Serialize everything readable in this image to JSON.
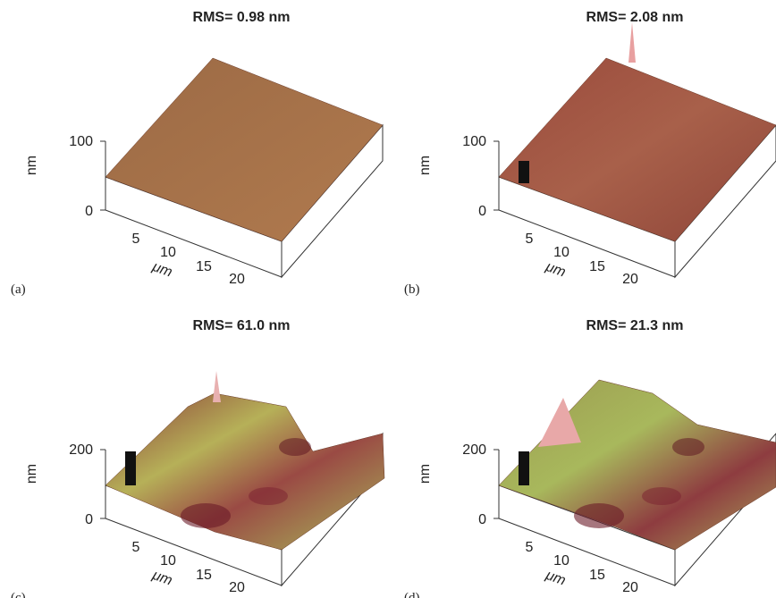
{
  "panels": [
    {
      "label": "(a)",
      "title": "RMS= 0.98 nm",
      "z_label": "nm",
      "z_ticks": [
        "100",
        "0"
      ],
      "x_ticks": [
        "5",
        "10",
        "15",
        "20"
      ],
      "x_label": "μm"
    },
    {
      "label": "(b)",
      "title": "RMS= 2.08 nm",
      "z_label": "nm",
      "z_ticks": [
        "100",
        "0"
      ],
      "x_ticks": [
        "5",
        "10",
        "15",
        "20"
      ],
      "x_label": "μm"
    },
    {
      "label": "(c)",
      "title": "RMS= 61.0 nm",
      "z_label": "nm",
      "z_ticks": [
        "200",
        "0"
      ],
      "x_ticks": [
        "5",
        "10",
        "15",
        "20"
      ],
      "x_label": "μm"
    },
    {
      "label": "(d)",
      "title": "RMS= 21.3 nm",
      "z_label": "nm",
      "z_ticks": [
        "200",
        "0"
      ],
      "x_ticks": [
        "5",
        "10",
        "15",
        "20"
      ],
      "x_label": "μm"
    }
  ]
}
